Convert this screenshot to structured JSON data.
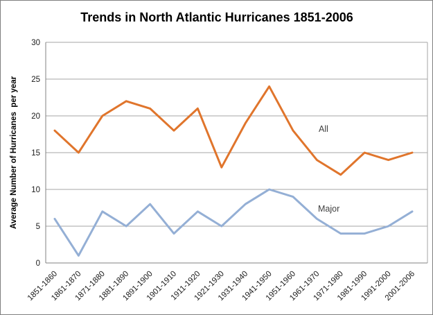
{
  "window": {
    "background": "#ffffff",
    "border_color": "#7f7f7f"
  },
  "chart_data": {
    "type": "line",
    "title": "Trends in North Atlantic Hurricanes 1851-2006",
    "xlabel": "",
    "ylabel": "Average Number of Hurricanes  per year",
    "categories": [
      "1851-1860",
      "1861-1870",
      "1871-1880",
      "1881-1890",
      "1891-1900",
      "1901-1910",
      "1911-1920",
      "1921-1930",
      "1931-1940",
      "1941-1950",
      "1951-1960",
      "1961-1970",
      "1971-1980",
      "1981-1990",
      "1991-2000",
      "2001-2006"
    ],
    "series": [
      {
        "name": "All",
        "color": "#E0752C",
        "values": [
          18,
          15,
          20,
          22,
          21,
          18,
          21,
          13,
          19,
          24,
          18,
          14,
          12,
          15,
          14,
          15
        ]
      },
      {
        "name": "Major",
        "color": "#94AFD5",
        "values": [
          6,
          1,
          7,
          5,
          8,
          4,
          7,
          5,
          8,
          10,
          9,
          6,
          4,
          4,
          5,
          7
        ]
      }
    ],
    "ylim": [
      0,
      30
    ],
    "yticks": [
      0,
      5,
      10,
      15,
      20,
      25,
      30
    ],
    "grid": true,
    "gridline_color": "#A6A6A6",
    "axis_color": "#808080",
    "legend_position": "inline-labels",
    "x_tick_rotation_deg": -45
  }
}
